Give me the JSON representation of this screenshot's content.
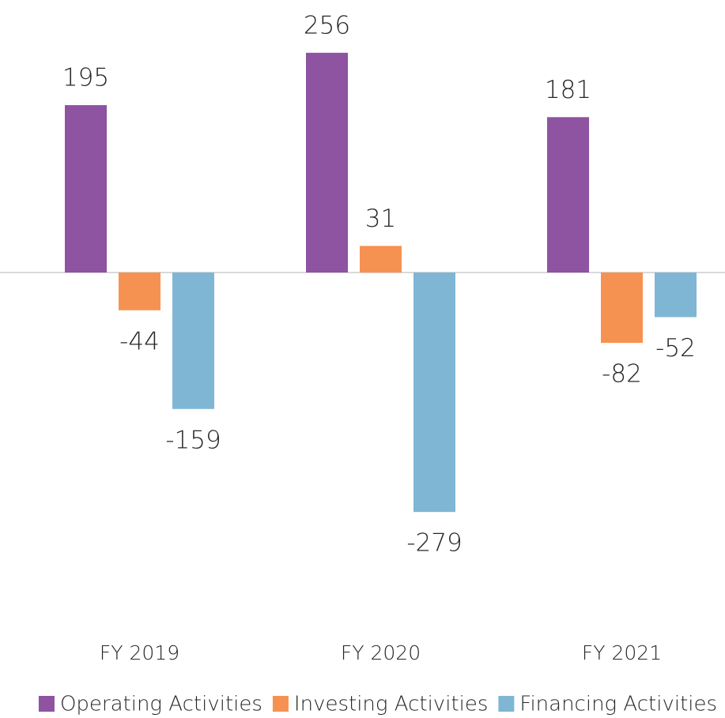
{
  "chart_data": {
    "type": "bar",
    "categories": [
      "FY 2019",
      "FY 2020",
      "FY 2021"
    ],
    "series": [
      {
        "name": "Operating Activities",
        "color": "#8e53a1",
        "values": [
          195,
          256,
          181
        ]
      },
      {
        "name": "Investing Activities",
        "color": "#f69251",
        "values": [
          -44,
          31,
          -82
        ]
      },
      {
        "name": "Financing Activities",
        "color": "#7fb6d4",
        "values": [
          -159,
          -279,
          -52
        ]
      }
    ],
    "ylim": [
      -300,
      300
    ],
    "legend": "bottom"
  }
}
